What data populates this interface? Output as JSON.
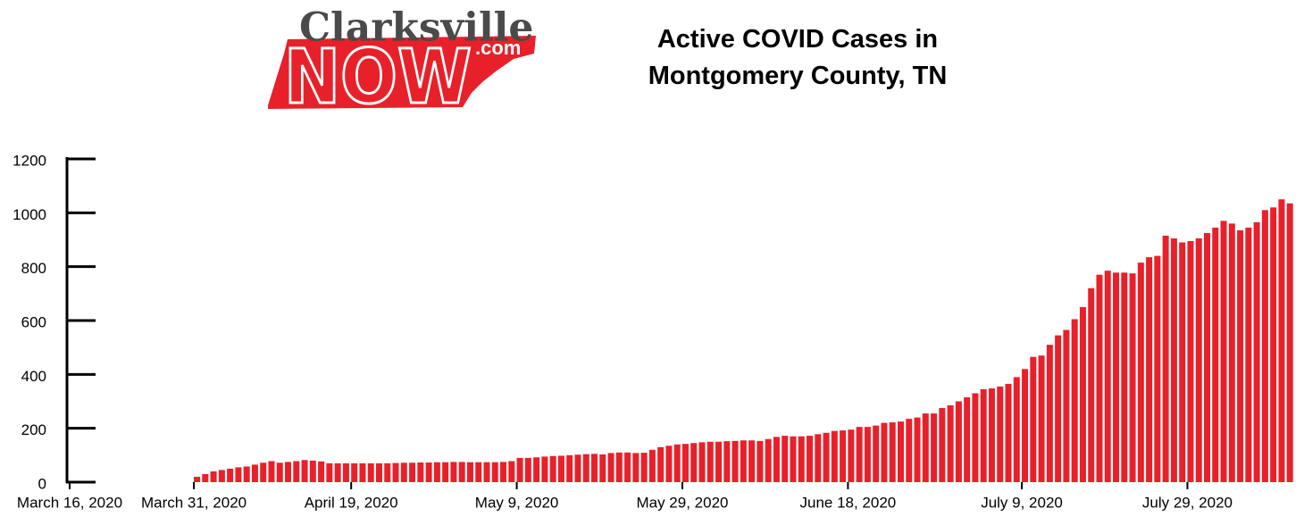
{
  "logo": {
    "name": "Clarksville",
    "big": "NOW",
    "suffix": ".com"
  },
  "chart_data": {
    "type": "bar",
    "title": "Active COVID Cases in Montgomery County, TN",
    "color": "#e8202a",
    "categories": [
      "March 16, 2020",
      null,
      null,
      null,
      null,
      null,
      null,
      null,
      null,
      null,
      null,
      null,
      null,
      null,
      null,
      "March 31, 2020",
      null,
      null,
      null,
      null,
      null,
      null,
      null,
      null,
      null,
      null,
      null,
      null,
      null,
      null,
      null,
      null,
      null,
      null,
      "April 19, 2020",
      null,
      null,
      null,
      null,
      null,
      null,
      null,
      null,
      null,
      null,
      null,
      null,
      null,
      null,
      null,
      null,
      null,
      null,
      null,
      "May 9, 2020",
      null,
      null,
      null,
      null,
      null,
      null,
      null,
      null,
      null,
      null,
      null,
      null,
      null,
      null,
      null,
      null,
      null,
      null,
      null,
      "May 29, 2020",
      null,
      null,
      null,
      null,
      null,
      null,
      null,
      null,
      null,
      null,
      null,
      null,
      null,
      null,
      null,
      null,
      null,
      null,
      null,
      "June 18, 2020",
      null,
      null,
      null,
      null,
      null,
      null,
      null,
      null,
      null,
      null,
      null,
      null,
      null,
      null,
      null,
      null,
      null,
      null,
      null,
      null,
      "July 9, 2020",
      null,
      null,
      null,
      null,
      null,
      null,
      null,
      null,
      null,
      null,
      null,
      null,
      null,
      null,
      null,
      null,
      null,
      null,
      null,
      "July 29, 2020",
      null,
      null,
      null,
      null,
      null,
      null,
      null,
      null,
      null,
      null,
      null,
      null
    ],
    "values": [
      0,
      0,
      0,
      0,
      0,
      0,
      0,
      0,
      0,
      0,
      0,
      0,
      0,
      0,
      0,
      20,
      30,
      40,
      45,
      50,
      55,
      58,
      65,
      72,
      78,
      72,
      75,
      78,
      82,
      80,
      77,
      70,
      70,
      70,
      70,
      70,
      70,
      70,
      70,
      71,
      72,
      72,
      73,
      73,
      74,
      74,
      75,
      75,
      74,
      74,
      74,
      74,
      75,
      78,
      90,
      90,
      92,
      95,
      97,
      98,
      100,
      102,
      104,
      105,
      103,
      108,
      110,
      110,
      108,
      109,
      120,
      130,
      135,
      140,
      142,
      145,
      148,
      150,
      150,
      152,
      153,
      155,
      155,
      153,
      160,
      168,
      172,
      170,
      170,
      172,
      178,
      183,
      190,
      192,
      195,
      205,
      205,
      210,
      220,
      222,
      225,
      235,
      240,
      255,
      255,
      275,
      285,
      300,
      315,
      330,
      345,
      348,
      355,
      365,
      390,
      420,
      465,
      470,
      510,
      545,
      565,
      605,
      650,
      720,
      770,
      785,
      778,
      778,
      775,
      815,
      835,
      840,
      915,
      905,
      890,
      895,
      905,
      925,
      945,
      970,
      960,
      935,
      945,
      965,
      1010,
      1020,
      1050,
      1035
    ],
    "ylim": [
      0,
      1200
    ],
    "yticks": [
      0,
      200,
      400,
      600,
      800,
      1000,
      1200
    ]
  }
}
